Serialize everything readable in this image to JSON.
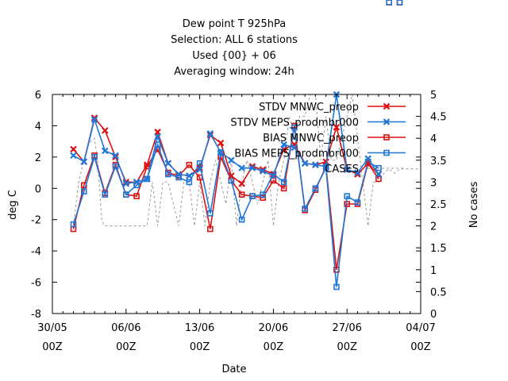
{
  "chart_data": {
    "type": "line",
    "title_lines": [
      "Dew point T 925hPa",
      "Selection: ALL      6 stations",
      "Used {00} + 06",
      "Averaging window: 24h"
    ],
    "xlabel": "Date",
    "ylabel": "deg C",
    "y2label": "No cases",
    "ylim": [
      -8,
      6
    ],
    "y2lim": [
      0,
      5
    ],
    "xlim_days": [
      0,
      35
    ],
    "x_ticks": [
      {
        "date": "30/05",
        "hour": "00Z",
        "day": 0
      },
      {
        "date": "06/06",
        "hour": "00Z",
        "day": 7
      },
      {
        "date": "13/06",
        "hour": "00Z",
        "day": 14
      },
      {
        "date": "20/06",
        "hour": "00Z",
        "day": 21
      },
      {
        "date": "27/06",
        "hour": "00Z",
        "day": 28
      },
      {
        "date": "04/07",
        "hour": "00Z",
        "day": 35
      }
    ],
    "y_ticks": [
      "6",
      "4",
      "2",
      "0",
      "-2",
      "-4",
      "-6",
      "-8"
    ],
    "y_tick_values": [
      6,
      4,
      2,
      0,
      -2,
      -4,
      -6,
      -8
    ],
    "y2_ticks": [
      "5",
      "4.5",
      "4",
      "3.5",
      "3",
      "2.5",
      "2",
      "1.5",
      "1",
      "0.5",
      "0"
    ],
    "y2_tick_values": [
      5,
      4.5,
      4,
      3.5,
      3,
      2.5,
      2,
      1.5,
      1,
      0.5,
      0
    ],
    "legend_position": "top-right",
    "x_days": [
      2,
      3,
      4,
      5,
      6,
      7,
      8,
      9,
      10,
      11,
      12,
      13,
      14,
      15,
      16,
      17,
      18,
      19,
      20,
      21,
      22,
      23,
      24,
      25,
      26,
      27,
      28,
      29,
      30,
      31,
      32,
      33
    ],
    "series": [
      {
        "name": "STDV MNWC_preop",
        "color": "#dd1111",
        "marker": "x",
        "values": [
          2.5,
          1.7,
          4.5,
          3.7,
          2.0,
          0.4,
          0.4,
          1.5,
          3.6,
          1.6,
          0.9,
          0.8,
          1.3,
          3.4,
          2.9,
          0.8,
          0.3,
          1.4,
          1.2,
          0.9,
          2.5,
          2.8,
          1.6,
          1.5,
          1.7,
          3.9,
          1.2,
          0.9,
          1.6,
          0.9
        ]
      },
      {
        "name": "STDV MEPS_prodmbr000",
        "color": "#1f77d8",
        "marker": "x",
        "values": [
          2.1,
          1.7,
          4.4,
          2.4,
          2.1,
          0.3,
          0.4,
          0.6,
          3.3,
          1.6,
          0.9,
          0.8,
          1.2,
          3.5,
          2.3,
          1.8,
          1.3,
          1.3,
          1.1,
          0.8,
          2.8,
          2.6,
          1.6,
          1.5,
          1.4,
          6.0,
          1.2,
          1.0,
          1.9,
          0.9
        ]
      },
      {
        "name": "BIAS MNWC_preop",
        "color": "#dd1111",
        "marker": "square",
        "values": [
          -2.6,
          0.2,
          2.1,
          -0.3,
          1.5,
          -0.4,
          -0.5,
          1.4,
          2.5,
          1.0,
          0.8,
          1.5,
          0.7,
          -2.6,
          2.0,
          0.5,
          -0.4,
          -0.5,
          -0.6,
          0.5,
          0.0,
          4.0,
          -1.4,
          -0.1,
          1.4,
          -5.2,
          -1.0,
          -1.0,
          1.6,
          0.6
        ]
      },
      {
        "name": "BIAS MEPS_prodmbr000",
        "color": "#1f77d8",
        "marker": "square",
        "values": [
          -2.3,
          -0.2,
          2.0,
          -0.4,
          1.4,
          -0.4,
          0.2,
          0.6,
          2.8,
          0.9,
          0.7,
          0.4,
          1.6,
          -1.6,
          2.3,
          0.5,
          -2.0,
          -0.5,
          -0.4,
          0.9,
          0.4,
          3.9,
          -1.3,
          0.0,
          1.3,
          -6.3,
          -0.5,
          -0.9,
          1.7,
          1.3
        ]
      },
      {
        "name": "CASES",
        "color": "#999999",
        "marker": "none",
        "axis": "y2",
        "x": [
          2,
          2.5,
          3,
          3.5,
          4,
          4.3,
          4.7,
          5,
          5.5,
          6,
          6.5,
          7,
          7.5,
          8,
          8.5,
          9,
          9.5,
          10,
          10.5,
          11,
          11.5,
          12,
          12.5,
          13,
          13.5,
          14,
          14.5,
          15,
          15.5,
          16,
          16.5,
          17,
          17.5,
          18,
          18.5,
          19,
          19.5,
          20,
          20.5,
          21,
          21.5,
          22,
          22.5,
          23,
          23.5,
          24,
          24.5,
          25,
          25.5,
          26,
          26.5,
          27,
          27.5,
          28,
          28.5,
          29,
          29.5,
          30,
          30.5,
          31,
          31.5,
          32,
          32.5,
          33,
          33.5,
          34,
          34.5,
          35
        ],
        "values": [
          2,
          3,
          3.5,
          3.9,
          4,
          3.5,
          2.1,
          2,
          2,
          2,
          2,
          2,
          2,
          2,
          2,
          2,
          3,
          2,
          3,
          3,
          2.5,
          2,
          3,
          3,
          2,
          3,
          2,
          3,
          3.5,
          3,
          2.5,
          3.5,
          2,
          3,
          3.5,
          3,
          2.5,
          3,
          3.5,
          2,
          3,
          3.5,
          4.5,
          4,
          4.5,
          4.5,
          5,
          5,
          3.5,
          4.5,
          3.5,
          3.5,
          4,
          4.5,
          5,
          4,
          3,
          2,
          3,
          3,
          3.2,
          3.3,
          3.2,
          3.3,
          3.3,
          3.3,
          3.3,
          3.3
        ]
      }
    ]
  }
}
